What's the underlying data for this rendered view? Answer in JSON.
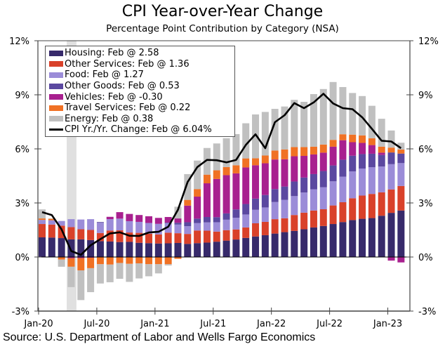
{
  "chart_data": {
    "type": "bar",
    "subtype": "stacked-bar-with-line",
    "title": "CPI Year-over-Year Change",
    "subtitle": "Percentage Point Contribution by Category  (NSA)",
    "source": "Source: U.S. Department of Labor and Wells Fargo Economics",
    "xlabel": "",
    "ylabel": "",
    "ylim": [
      -3,
      12
    ],
    "yticks": [
      -3,
      0,
      3,
      6,
      9,
      12
    ],
    "ytick_labels": [
      "-3%",
      "0%",
      "3%",
      "6%",
      "9%",
      "12%"
    ],
    "xtick_labels": [
      "Jan-20",
      "Jul-20",
      "Jan-21",
      "Jul-21",
      "Jan-22",
      "Jul-22",
      "Jan-23"
    ],
    "xtick_indices": [
      0,
      6,
      12,
      18,
      24,
      30,
      36
    ],
    "categories": [
      "Jan-20",
      "Feb-20",
      "Mar-20",
      "Apr-20",
      "May-20",
      "Jun-20",
      "Jul-20",
      "Aug-20",
      "Sep-20",
      "Oct-20",
      "Nov-20",
      "Dec-20",
      "Jan-21",
      "Feb-21",
      "Mar-21",
      "Apr-21",
      "May-21",
      "Jun-21",
      "Jul-21",
      "Aug-21",
      "Sep-21",
      "Oct-21",
      "Nov-21",
      "Dec-21",
      "Jan-22",
      "Feb-22",
      "Mar-22",
      "Apr-22",
      "May-22",
      "Jun-22",
      "Jul-22",
      "Aug-22",
      "Sep-22",
      "Oct-22",
      "Nov-22",
      "Dec-22",
      "Jan-23",
      "Feb-23"
    ],
    "recession_shading": {
      "start_index": 2.5,
      "end_index": 3.5
    },
    "legend_position": "top-left",
    "series": [
      {
        "name": "Housing",
        "legend": "Housing: Feb @ 2.58",
        "color": "#372a6b",
        "values": [
          1.09,
          1.08,
          1.05,
          0.98,
          0.98,
          0.94,
          0.88,
          0.86,
          0.83,
          0.84,
          0.79,
          0.77,
          0.75,
          0.76,
          0.78,
          0.73,
          0.77,
          0.8,
          0.85,
          0.91,
          0.97,
          1.06,
          1.14,
          1.21,
          1.3,
          1.38,
          1.45,
          1.54,
          1.64,
          1.72,
          1.83,
          1.94,
          2.05,
          2.12,
          2.16,
          2.29,
          2.45,
          2.58
        ]
      },
      {
        "name": "Other Services",
        "legend": "Other Services: Feb @ 1.36",
        "color": "#d9412a",
        "values": [
          0.74,
          0.72,
          0.69,
          0.68,
          0.56,
          0.56,
          0.45,
          0.61,
          0.65,
          0.52,
          0.55,
          0.52,
          0.5,
          0.59,
          0.54,
          0.55,
          0.7,
          0.66,
          0.56,
          0.58,
          0.56,
          0.58,
          0.73,
          0.74,
          0.8,
          0.77,
          0.88,
          0.92,
          0.94,
          0.93,
          1.03,
          1.1,
          1.21,
          1.29,
          1.34,
          1.3,
          1.3,
          1.36
        ]
      },
      {
        "name": "Food",
        "legend": "Food: Feb @ 1.27",
        "color": "#9b8cd8",
        "values": [
          0.23,
          0.24,
          0.26,
          0.44,
          0.54,
          0.6,
          0.57,
          0.63,
          0.65,
          0.63,
          0.61,
          0.6,
          0.59,
          0.53,
          0.48,
          0.43,
          0.41,
          0.46,
          0.52,
          0.58,
          0.65,
          0.72,
          0.75,
          0.8,
          0.95,
          1.02,
          1.05,
          1.12,
          1.18,
          1.22,
          1.34,
          1.42,
          1.49,
          1.5,
          1.48,
          1.43,
          1.4,
          1.27
        ]
      },
      {
        "name": "Other Goods",
        "legend": "Other Goods: Feb @ 0.53",
        "color": "#5b48a0",
        "values": [
          0.0,
          0.0,
          0.0,
          0.0,
          0.0,
          0.0,
          0.04,
          0.0,
          0.0,
          0.0,
          0.0,
          0.0,
          0.0,
          0.03,
          0.1,
          0.22,
          0.25,
          0.3,
          0.28,
          0.35,
          0.46,
          0.58,
          0.62,
          0.69,
          0.72,
          0.74,
          0.81,
          0.83,
          0.84,
          0.9,
          0.88,
          0.94,
          0.87,
          0.8,
          0.75,
          0.64,
          0.65,
          0.53
        ]
      },
      {
        "name": "Vehicles",
        "legend": "Vehicles: Feb @ -0.30",
        "color": "#a8208f",
        "values": [
          -0.02,
          0.0,
          0.0,
          -0.07,
          -0.06,
          -0.04,
          0.0,
          0.13,
          0.36,
          0.4,
          0.38,
          0.37,
          0.33,
          0.31,
          0.24,
          0.92,
          1.22,
          1.87,
          2.12,
          2.12,
          2.0,
          2.03,
          1.85,
          1.76,
          1.64,
          1.51,
          1.4,
          1.2,
          1.09,
          1.02,
          1.04,
          1.08,
          0.75,
          0.62,
          0.48,
          0.13,
          -0.2,
          -0.3
        ]
      },
      {
        "name": "Travel Services",
        "legend": "Travel Services: Feb @ 0.22",
        "color": "#f07124",
        "values": [
          0.08,
          0.08,
          -0.14,
          -0.47,
          -0.68,
          -0.58,
          -0.4,
          -0.42,
          -0.33,
          -0.38,
          -0.35,
          -0.4,
          -0.4,
          -0.4,
          -0.1,
          0.32,
          0.42,
          0.48,
          0.48,
          0.45,
          0.45,
          0.5,
          0.39,
          0.43,
          0.5,
          0.55,
          0.51,
          0.49,
          0.43,
          0.45,
          0.38,
          0.33,
          0.42,
          0.42,
          0.38,
          0.33,
          0.27,
          0.22
        ]
      },
      {
        "name": "Energy",
        "legend": "Energy: Feb @ 0.38",
        "color": "#c0c0c0",
        "values": [
          0.5,
          0.02,
          -0.4,
          -1.13,
          -1.65,
          -1.33,
          -1.07,
          -0.98,
          -0.88,
          -1.0,
          -0.84,
          -0.67,
          -0.51,
          -0.07,
          0.65,
          1.43,
          1.58,
          1.48,
          1.49,
          1.6,
          1.73,
          1.95,
          2.43,
          2.42,
          2.31,
          2.38,
          2.62,
          2.51,
          2.92,
          3.08,
          3.21,
          2.62,
          2.31,
          2.18,
          1.8,
          1.55,
          0.95,
          0.38
        ]
      }
    ],
    "line": {
      "name": "CPI Yr./Yr. Change",
      "legend": "CPI Yr./Yr. Change: Feb @ 6.04%",
      "color": "#000000",
      "values": [
        2.49,
        2.33,
        1.54,
        0.33,
        0.12,
        0.65,
        0.99,
        1.31,
        1.37,
        1.18,
        1.17,
        1.36,
        1.4,
        1.68,
        2.62,
        4.16,
        4.99,
        5.39,
        5.37,
        5.25,
        5.39,
        6.22,
        6.81,
        6.04,
        7.48,
        7.87,
        8.54,
        8.26,
        8.58,
        9.06,
        8.52,
        8.26,
        8.2,
        7.75,
        7.11,
        6.45,
        6.41,
        6.04
      ]
    }
  }
}
